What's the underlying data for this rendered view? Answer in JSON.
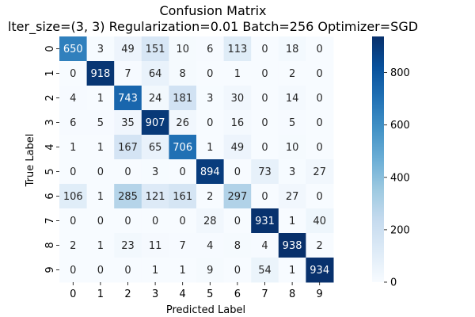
{
  "chart_data": {
    "type": "heatmap",
    "title_line1": "Confusion Matrix",
    "title_line2": "lter_size=(3, 3) Regularization=0.01 Batch=256 Optimizer=SGD",
    "xlabel": "Predicted Label",
    "ylabel": "True Label",
    "x_categories": [
      "0",
      "1",
      "2",
      "3",
      "4",
      "5",
      "6",
      "7",
      "8",
      "9"
    ],
    "y_categories": [
      "0",
      "1",
      "2",
      "3",
      "4",
      "5",
      "6",
      "7",
      "8",
      "9"
    ],
    "matrix": [
      [
        650,
        3,
        49,
        151,
        10,
        6,
        113,
        0,
        18,
        0
      ],
      [
        0,
        918,
        7,
        64,
        8,
        0,
        1,
        0,
        2,
        0
      ],
      [
        4,
        1,
        743,
        24,
        181,
        3,
        30,
        0,
        14,
        0
      ],
      [
        6,
        5,
        35,
        907,
        26,
        0,
        16,
        0,
        5,
        0
      ],
      [
        1,
        1,
        167,
        65,
        706,
        1,
        49,
        0,
        10,
        0
      ],
      [
        0,
        0,
        0,
        3,
        0,
        894,
        0,
        73,
        3,
        27
      ],
      [
        106,
        1,
        285,
        121,
        161,
        2,
        297,
        0,
        27,
        0
      ],
      [
        0,
        0,
        0,
        0,
        0,
        28,
        0,
        931,
        1,
        40
      ],
      [
        2,
        1,
        23,
        11,
        7,
        4,
        8,
        4,
        938,
        2
      ],
      [
        0,
        0,
        0,
        1,
        1,
        9,
        0,
        54,
        1,
        934
      ]
    ],
    "colormap": "Blues",
    "value_range": [
      0,
      938
    ],
    "colorbar_ticks": [
      0,
      200,
      400,
      600,
      800
    ]
  }
}
